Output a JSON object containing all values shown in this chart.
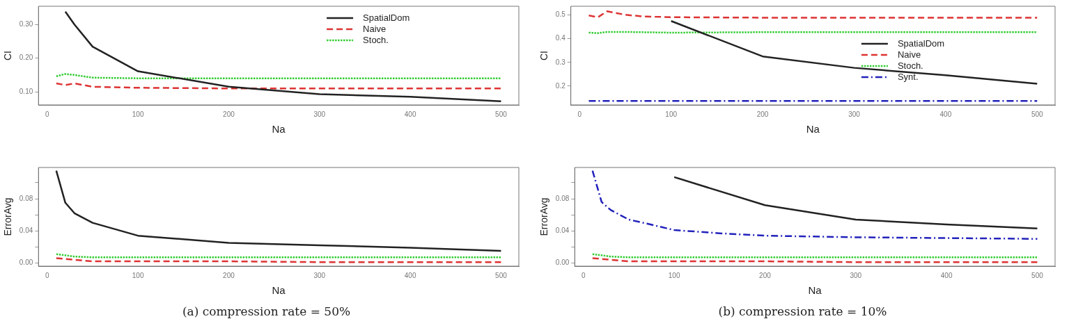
{
  "chart_data": [
    {
      "type": "line",
      "ylabel": "CI",
      "xlabel": "Na",
      "xlim": [
        -9.6,
        519.6
      ],
      "xticks": [
        0,
        100,
        200,
        300,
        400,
        500
      ],
      "ylim": [
        0.061,
        0.354
      ],
      "yticks": [
        {
          "value": 0.1,
          "label": "0.10"
        },
        {
          "value": 0.2,
          "label": "0.20"
        },
        {
          "value": 0.3,
          "label": "0.30"
        }
      ],
      "grid": false,
      "legend": "top right",
      "marker": "none",
      "series": [
        {
          "name": "SpatialDom",
          "color": "#222222",
          "line_style": "solid",
          "x": [
            20,
            30,
            50,
            100,
            200,
            300,
            400,
            500
          ],
          "values": [
            0.338,
            0.3,
            0.234,
            0.161,
            0.115,
            0.093,
            0.085,
            0.072
          ]
        },
        {
          "name": "Naive",
          "color": "#dd3333",
          "line_style": "dashed",
          "x": [
            10,
            20,
            30,
            50,
            100,
            200,
            300,
            400,
            500
          ],
          "values": [
            0.125,
            0.12,
            0.125,
            0.115,
            0.112,
            0.11,
            0.11,
            0.11,
            0.11
          ]
        },
        {
          "name": "Stoch.",
          "color": "#33cc33",
          "line_style": "dotted",
          "x": [
            10,
            20,
            30,
            50,
            100,
            200,
            300,
            400,
            500
          ],
          "values": [
            0.146,
            0.153,
            0.15,
            0.142,
            0.14,
            0.14,
            0.14,
            0.14,
            0.14
          ]
        }
      ]
    },
    {
      "type": "line",
      "ylabel": "CI",
      "xlabel": "Na",
      "xlim": [
        -9.6,
        519.6
      ],
      "xticks": [
        0,
        100,
        200,
        300,
        400,
        500
      ],
      "ylim": [
        0.121,
        0.536
      ],
      "yticks": [
        0.2,
        0.3,
        0.4,
        0.5
      ],
      "grid": false,
      "legend": "right",
      "marker": "none",
      "series": [
        {
          "name": "SpatialDom",
          "color": "#222222",
          "line_style": "solid",
          "x": [
            100,
            200,
            300,
            400,
            500
          ],
          "values": [
            0.474,
            0.325,
            0.277,
            0.246,
            0.21
          ]
        },
        {
          "name": "Naive",
          "color": "#dd3333",
          "line_style": "dashed",
          "x": [
            10,
            20,
            30,
            50,
            70,
            100,
            200,
            300,
            400,
            500
          ],
          "values": [
            0.497,
            0.49,
            0.515,
            0.5,
            0.493,
            0.49,
            0.488,
            0.488,
            0.488,
            0.488
          ]
        },
        {
          "name": "Stoch.",
          "color": "#33cc33",
          "line_style": "dotted",
          "x": [
            10,
            20,
            30,
            50,
            100,
            200,
            300,
            400,
            500
          ],
          "values": [
            0.425,
            0.423,
            0.428,
            0.428,
            0.425,
            0.427,
            0.427,
            0.427,
            0.427
          ]
        },
        {
          "name": "Synt.",
          "color": "#2222bb",
          "line_style": "dashdot",
          "x": [
            10,
            100,
            200,
            300,
            400,
            500
          ],
          "values": [
            0.138,
            0.138,
            0.138,
            0.138,
            0.138,
            0.138
          ]
        }
      ]
    },
    {
      "type": "line",
      "ylabel": "ErrorAvg",
      "xlabel": "Na",
      "xlim": [
        -9.6,
        519.6
      ],
      "xticks": [
        0,
        100,
        200,
        300,
        400,
        500
      ],
      "ylim": [
        -0.004,
        0.119
      ],
      "yticks": [
        {
          "value": 0,
          "label": "0.00"
        },
        {
          "value": 0.02,
          "label": null
        },
        {
          "value": 0.04,
          "label": "0.04"
        },
        {
          "value": 0.06,
          "label": null
        },
        {
          "value": 0.08,
          "label": "0.08"
        },
        {
          "value": 0.1,
          "label": null
        }
      ],
      "grid": false,
      "marker": "none",
      "annotations": [
        "(a) compression rate = 50%"
      ],
      "series": [
        {
          "color": "#222222",
          "line_style": "solid",
          "x": [
            10,
            20,
            30,
            50,
            100,
            200,
            300,
            400,
            500
          ],
          "values": [
            0.115,
            0.075,
            0.062,
            0.05,
            0.034,
            0.025,
            0.022,
            0.019,
            0.015
          ]
        },
        {
          "color": "#dd3333",
          "line_style": "dashed",
          "x": [
            10,
            30,
            50,
            100,
            200,
            300,
            400,
            500
          ],
          "values": [
            0.006,
            0.004,
            0.002,
            0.002,
            0.002,
            0.001,
            0.001,
            0.001
          ]
        },
        {
          "color": "#33cc33",
          "line_style": "dotted",
          "x": [
            10,
            30,
            50,
            100,
            200,
            300,
            400,
            500
          ],
          "values": [
            0.011,
            0.008,
            0.007,
            0.007,
            0.007,
            0.007,
            0.007,
            0.007
          ]
        }
      ]
    },
    {
      "type": "line",
      "ylabel": "ErrorAvg",
      "xlabel": "Na",
      "xlim": [
        -9.6,
        519.6
      ],
      "xticks": [
        0,
        100,
        200,
        300,
        400,
        500
      ],
      "ylim": [
        -0.004,
        0.119
      ],
      "yticks": [
        {
          "value": 0,
          "label": "0.00"
        },
        {
          "value": 0.02,
          "label": null
        },
        {
          "value": 0.04,
          "label": "0.04"
        },
        {
          "value": 0.06,
          "label": null
        },
        {
          "value": 0.08,
          "label": "0.08"
        },
        {
          "value": 0.1,
          "label": null
        }
      ],
      "grid": false,
      "marker": "none",
      "annotations": [
        "(b) compression rate = 10%"
      ],
      "series": [
        {
          "color": "#222222",
          "line_style": "solid",
          "x": [
            100,
            200,
            300,
            400,
            500
          ],
          "values": [
            0.107,
            0.072,
            0.054,
            0.048,
            0.043
          ]
        },
        {
          "color": "#dd3333",
          "line_style": "dashed",
          "x": [
            10,
            30,
            50,
            100,
            200,
            300,
            400,
            500
          ],
          "values": [
            0.006,
            0.004,
            0.002,
            0.002,
            0.002,
            0.001,
            0.001,
            0.001
          ]
        },
        {
          "color": "#33cc33",
          "line_style": "dotted",
          "x": [
            10,
            30,
            50,
            100,
            200,
            300,
            400,
            500
          ],
          "values": [
            0.011,
            0.008,
            0.007,
            0.007,
            0.007,
            0.007,
            0.007,
            0.007
          ]
        },
        {
          "color": "#2222bb",
          "line_style": "dashdot",
          "x": [
            10,
            20,
            30,
            50,
            70,
            100,
            150,
            200,
            300,
            400,
            500
          ],
          "values": [
            0.115,
            0.076,
            0.066,
            0.054,
            0.049,
            0.041,
            0.037,
            0.034,
            0.032,
            0.031,
            0.03
          ]
        }
      ]
    }
  ]
}
